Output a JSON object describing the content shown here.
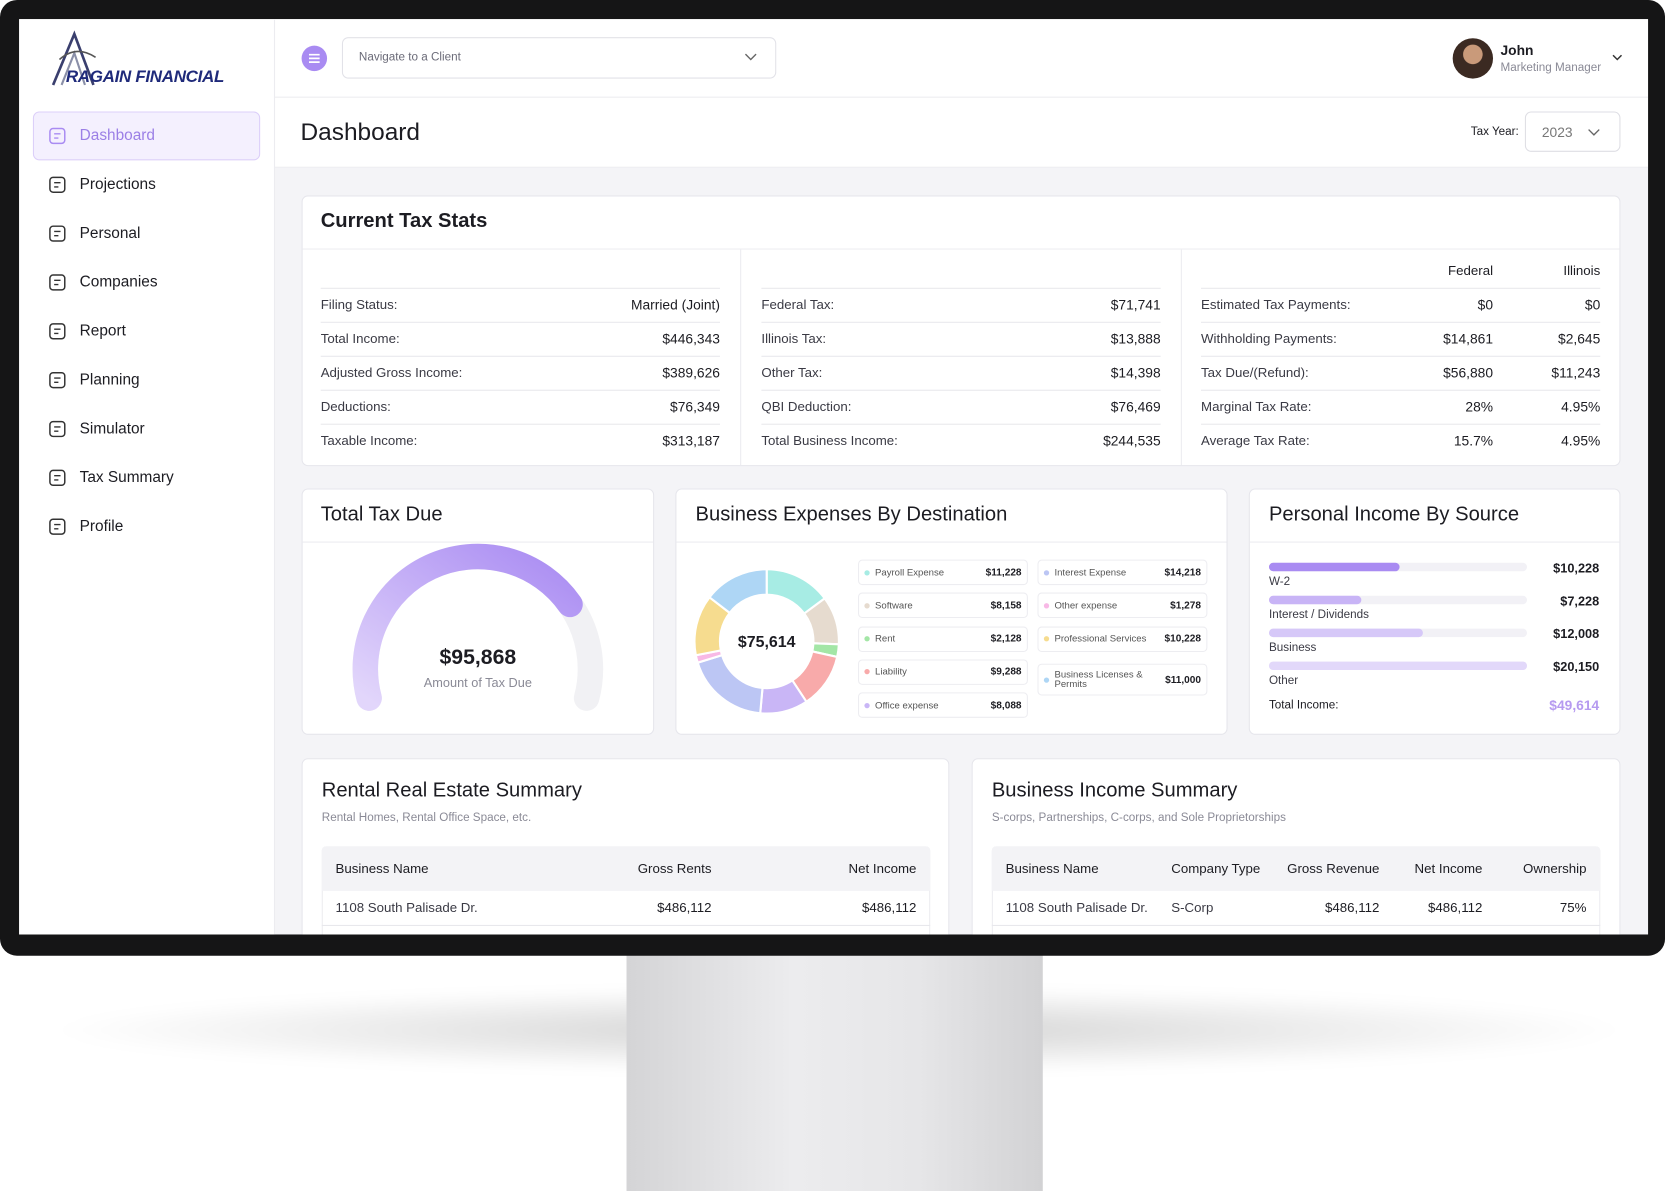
{
  "brand": "RAGAIN FINANCIAL",
  "nav": [
    "Dashboard",
    "Projections",
    "Personal",
    "Companies",
    "Report",
    "Planning",
    "Simulator",
    "Tax Summary",
    "Profile"
  ],
  "topbar": {
    "client_select": "Navigate to a Client",
    "user": {
      "name": "John",
      "role": "Marketing Manager"
    }
  },
  "header": {
    "title": "Dashboard",
    "tax_year_label": "Tax Year:",
    "tax_year": "2023"
  },
  "tax_stats": {
    "title": "Current Tax Stats",
    "summary": [
      [
        [
          "Filing Status:",
          "Married (Joint)"
        ],
        [
          "Total Income:",
          "$446,343"
        ],
        [
          "Adjusted Gross Income:",
          "$389,626"
        ],
        [
          "Deductions:",
          "$76,349"
        ],
        [
          "Taxable Income:",
          "$313,187"
        ]
      ],
      [
        [
          "Federal Tax:",
          "$71,741"
        ],
        [
          "Illinois Tax:",
          "$13,888"
        ],
        [
          "Other Tax:",
          "$14,398"
        ],
        [
          "QBI Deduction:",
          "$76,469"
        ],
        [
          "Total Business Income:",
          "$244,535"
        ]
      ]
    ],
    "by_jurisdiction": {
      "headers": [
        "Federal",
        "Illinois"
      ],
      "rows": [
        [
          "Estimated Tax Payments:",
          "$0",
          "$0"
        ],
        [
          "Withholding Payments:",
          "$14,861",
          "$2,645"
        ],
        [
          "Tax Due/(Refund):",
          "$56,880",
          "$11,243"
        ],
        [
          "Marginal Tax Rate:",
          "28%",
          "4.95%"
        ],
        [
          "Average Tax Rate:",
          "15.7%",
          "4.95%"
        ]
      ]
    }
  },
  "total_tax_due": {
    "title": "Total Tax Due",
    "amount": "$95,868",
    "caption": "Amount of Tax Due"
  },
  "chart_data": [
    {
      "type": "donut",
      "title": "Business Expenses By Destination",
      "center_label": "$75,614",
      "categories": [
        "Payroll Expense",
        "Software",
        "Rent",
        "Liability",
        "Office expense",
        "Interest Expense",
        "Other expense",
        "Professional Services",
        "Business Licenses & Permits"
      ],
      "values": [
        11228,
        8158,
        2128,
        9288,
        8088,
        14218,
        1278,
        10228,
        11000
      ],
      "value_labels": [
        "$11,228",
        "$8,158",
        "$2,128",
        "$9,288",
        "$8,088",
        "$14,218",
        "$1,278",
        "$10,228",
        "$11,000"
      ],
      "colors": [
        "#a7ece4",
        "#e6dbcf",
        "#a3e6a6",
        "#f8aaaa",
        "#c9b6f6",
        "#bcc6f4",
        "#f8b9e6",
        "#f6dc8f",
        "#aed6f5"
      ]
    },
    {
      "type": "bar",
      "title": "Personal Income By Source",
      "categories": [
        "W-2",
        "Interest / Dividends",
        "Business",
        "Other"
      ],
      "values": [
        10228,
        7228,
        12008,
        20150
      ],
      "value_labels": [
        "$10,228",
        "$7,228",
        "$12,008",
        "$20,150"
      ],
      "colors": [
        "#a98bf2",
        "#c8b4f6",
        "#d6c8f8",
        "#e2d8fa"
      ],
      "total_label": "Total Income:",
      "total_value_label": "$49,614"
    }
  ],
  "tables": [
    {
      "title": "Rental Real Estate Summary",
      "subtitle": "Rental Homes, Rental Office Space, etc.",
      "headers": [
        "Business Name",
        "Gross Rents",
        "Net Income"
      ],
      "rows": [
        [
          "1108 South Palisade Dr.",
          "$486,112",
          "$486,112"
        ]
      ]
    },
    {
      "title": "Business Income Summary",
      "subtitle": "S-corps, Partnerships, C-corps, and Sole Proprietorships",
      "headers": [
        "Business Name",
        "Company Type",
        "Gross Revenue",
        "Net Income",
        "Ownership"
      ],
      "rows": [
        [
          "1108 South Palisade Dr.",
          "S-Corp",
          "$486,112",
          "$486,112",
          "75%"
        ]
      ]
    }
  ]
}
